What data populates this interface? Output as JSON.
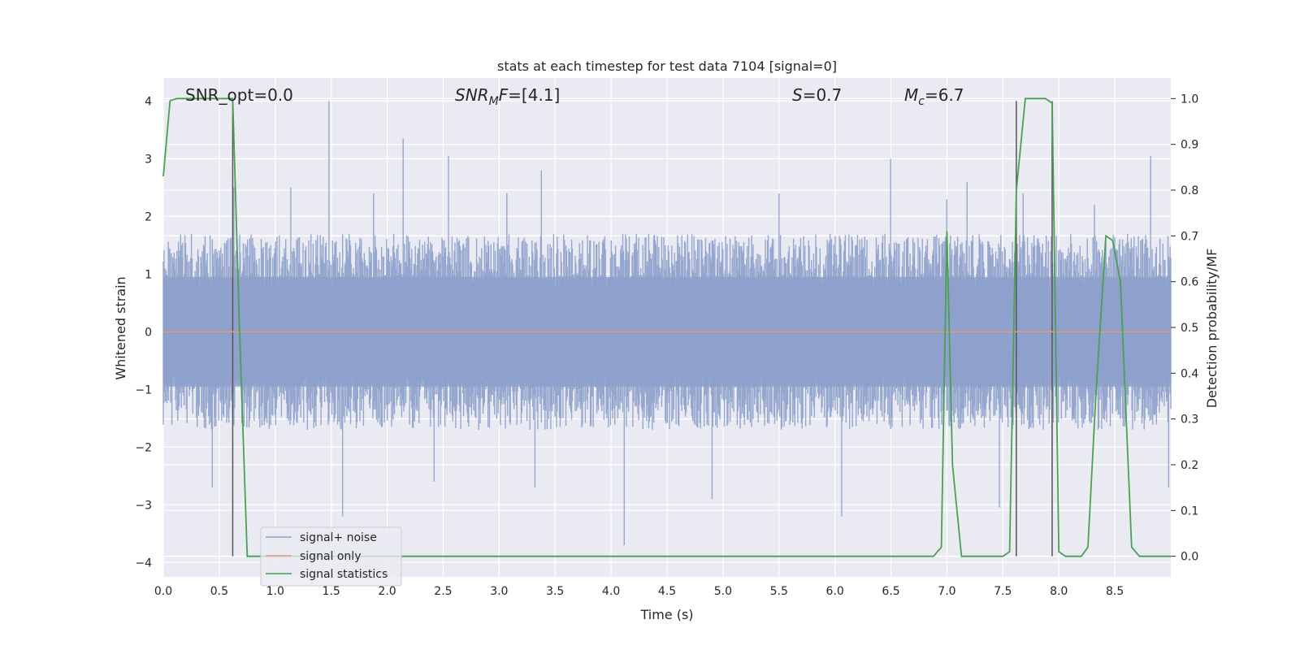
{
  "chart_data": {
    "type": "line",
    "title": "stats at each timestep for test data 7104 [signal=0]",
    "xlabel": "Time (s)",
    "ylabel": "Whitened strain",
    "y2label": "Detection probability/MF",
    "xlim": [
      0.0,
      9.0
    ],
    "ylim": [
      -4.25,
      4.4
    ],
    "y2lim": [
      -0.045,
      1.045
    ],
    "xticks": [
      0.0,
      0.5,
      1.0,
      1.5,
      2.0,
      2.5,
      3.0,
      3.5,
      4.0,
      4.5,
      5.0,
      5.5,
      6.0,
      6.5,
      7.0,
      7.5,
      8.0,
      8.5
    ],
    "xtick_labels": [
      "0.0",
      "0.5",
      "1.0",
      "1.5",
      "2.0",
      "2.5",
      "3.0",
      "3.5",
      "4.0",
      "4.5",
      "5.0",
      "5.5",
      "6.0",
      "6.5",
      "7.0",
      "7.5",
      "8.0",
      "8.5"
    ],
    "yticks": [
      -4,
      -3,
      -2,
      -1,
      0,
      1,
      2,
      3,
      4
    ],
    "ytick_labels": [
      "−4",
      "−3",
      "−2",
      "−1",
      "0",
      "1",
      "2",
      "3",
      "4"
    ],
    "y2ticks": [
      0.0,
      0.1,
      0.2,
      0.3,
      0.4,
      0.5,
      0.6,
      0.7,
      0.8,
      0.9,
      1.0
    ],
    "y2tick_labels": [
      "0.0",
      "0.1",
      "0.2",
      "0.3",
      "0.4",
      "0.5",
      "0.6",
      "0.7",
      "0.8",
      "0.9",
      "1.0"
    ],
    "grid": true,
    "legend_position": "lower-left",
    "annotations": [
      {
        "kind": "plain",
        "text": "SNR_opt=0.0"
      },
      {
        "kind": "sub",
        "base": "SNR",
        "sub": "M",
        "rest": "F=[4.1]"
      },
      {
        "kind": "italic",
        "base": "S",
        "rest": "=0.7"
      },
      {
        "kind": "sub",
        "base": "M",
        "sub": "c",
        "rest": "=6.7"
      }
    ],
    "vlines_x": [
      0.62,
      7.62,
      7.94
    ],
    "series": [
      {
        "name": "signal+ noise",
        "color": "#8da0cb",
        "description": "noisy whitened strain time series",
        "envelope_upper_typical": 1.3,
        "envelope_lower_typical": -1.3,
        "spikes": [
          {
            "x": 0.44,
            "y": -2.7
          },
          {
            "x": 0.63,
            "y": 2.5
          },
          {
            "x": 1.14,
            "y": 2.5
          },
          {
            "x": 1.48,
            "y": 4.0
          },
          {
            "x": 1.6,
            "y": -3.2
          },
          {
            "x": 1.88,
            "y": 2.4
          },
          {
            "x": 2.14,
            "y": 3.35
          },
          {
            "x": 2.42,
            "y": -2.6
          },
          {
            "x": 2.55,
            "y": 3.05
          },
          {
            "x": 3.07,
            "y": 2.4
          },
          {
            "x": 3.32,
            "y": -2.7
          },
          {
            "x": 3.38,
            "y": 2.8
          },
          {
            "x": 4.12,
            "y": -3.7
          },
          {
            "x": 4.9,
            "y": -2.9
          },
          {
            "x": 5.5,
            "y": 2.4
          },
          {
            "x": 6.06,
            "y": -3.2
          },
          {
            "x": 6.5,
            "y": 3.0
          },
          {
            "x": 7.0,
            "y": 2.3
          },
          {
            "x": 7.18,
            "y": 2.6
          },
          {
            "x": 7.47,
            "y": -3.05
          },
          {
            "x": 7.68,
            "y": 2.4
          },
          {
            "x": 7.94,
            "y": -2.6
          },
          {
            "x": 8.32,
            "y": 2.2
          },
          {
            "x": 8.82,
            "y": 3.05
          },
          {
            "x": 8.98,
            "y": -2.7
          }
        ]
      },
      {
        "name": "signal only",
        "color": "#e39a7a",
        "x": [
          0.0,
          9.0
        ],
        "y": [
          0.0,
          0.0
        ]
      },
      {
        "name": "signal statistics",
        "color": "#4aa052",
        "axis": "right",
        "x": [
          0.0,
          0.06,
          0.12,
          0.3,
          0.5,
          0.62,
          0.68,
          0.75,
          6.88,
          6.95,
          7.0,
          7.05,
          7.13,
          7.5,
          7.56,
          7.62,
          7.7,
          7.8,
          7.88,
          7.94,
          8.0,
          8.06,
          8.12,
          8.2,
          8.26,
          8.33,
          8.42,
          8.48,
          8.55,
          8.65,
          8.72,
          9.0
        ],
        "y": [
          0.83,
          0.995,
          1.0,
          1.0,
          1.0,
          1.0,
          0.5,
          0.0,
          0.0,
          0.02,
          0.71,
          0.2,
          0.0,
          0.0,
          0.01,
          0.8,
          1.0,
          1.0,
          1.0,
          0.99,
          0.01,
          0.0,
          0.0,
          0.0,
          0.02,
          0.35,
          0.7,
          0.69,
          0.6,
          0.02,
          0.0,
          0.0
        ]
      }
    ]
  }
}
